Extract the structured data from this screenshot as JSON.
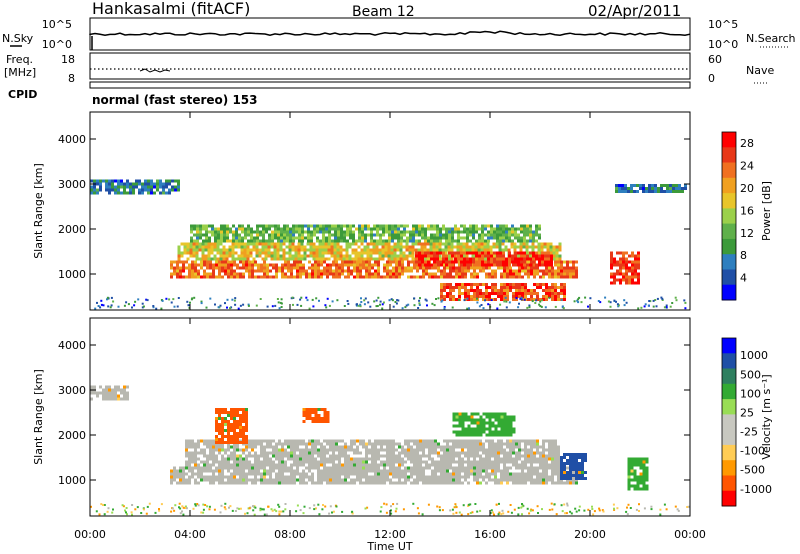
{
  "header": {
    "station": "Hankasalmi (fitACF)",
    "beam": "Beam 12",
    "date": "02/Apr/2011"
  },
  "noise_panel": {
    "left_label": "N.Sky",
    "right_label": "N.Search",
    "ticks_left": [
      "10^5",
      "10^0"
    ],
    "ticks_right": [
      "10^5",
      "10^0"
    ]
  },
  "freq_panel": {
    "left_label_1": "Freq.",
    "left_label_2": "[MHz]",
    "ticks_left": [
      "18",
      "8"
    ],
    "right_label": "Nave",
    "ticks_right": [
      "60",
      "0"
    ]
  },
  "cpid": {
    "label": "CPID",
    "text": "normal (fast stereo) 153"
  },
  "x_axis": {
    "label": "Time UT",
    "ticks": [
      "00:00",
      "04:00",
      "08:00",
      "12:00",
      "16:00",
      "20:00",
      "00:00"
    ]
  },
  "colors": {
    "power_scale": [
      "#0000ff",
      "#1f4fa6",
      "#2e7fbf",
      "#3c9a3a",
      "#5fb04a",
      "#9bd04a",
      "#e8c52a",
      "#f0a020",
      "#f07020",
      "#e83818",
      "#ff0000"
    ],
    "velocity_scale": [
      "#ff0000",
      "#ff5500",
      "#ff9900",
      "#ffcc55",
      "#c8c8c0",
      "#c8c8c0",
      "#99dd55",
      "#33aa33",
      "#2e7f5f",
      "#1f4fa6",
      "#0000ff"
    ],
    "ground_scatter": "#b8b8b0"
  },
  "chart_data": [
    {
      "type": "heatmap",
      "name": "power",
      "ylabel": "Slant Range [km]",
      "yticks": [
        "1000",
        "2000",
        "3000",
        "4000"
      ],
      "ylim": [
        200,
        4600
      ],
      "xlim": [
        "00:00",
        "24:00"
      ],
      "colorbar": {
        "label": "Power [dB]",
        "ticks": [
          "4",
          "8",
          "12",
          "16",
          "20",
          "24",
          "28"
        ],
        "range": [
          0,
          30
        ]
      },
      "bands": [
        {
          "t0": 0.0,
          "t1": 3.5,
          "r0": 2800,
          "r1": 3100,
          "value": 6
        },
        {
          "t0": 3.2,
          "t1": 19.5,
          "r0": 900,
          "r1": 1300,
          "value": 24
        },
        {
          "t0": 3.5,
          "t1": 18.8,
          "r0": 1300,
          "r1": 1700,
          "value": 18
        },
        {
          "t0": 4.0,
          "t1": 18.0,
          "r0": 1700,
          "r1": 2100,
          "value": 12
        },
        {
          "t0": 13.0,
          "t1": 18.5,
          "r0": 1200,
          "r1": 1500,
          "value": 28
        },
        {
          "t0": 14.0,
          "t1": 19.0,
          "r0": 450,
          "r1": 800,
          "value": 26
        },
        {
          "t0": 20.8,
          "t1": 22.0,
          "r0": 800,
          "r1": 1500,
          "value": 28
        },
        {
          "t0": 21.0,
          "t1": 23.8,
          "r0": 2800,
          "r1": 3000,
          "value": 6
        }
      ]
    },
    {
      "type": "heatmap",
      "name": "velocity",
      "ylabel": "Slant Range [km]",
      "yticks": [
        "1000",
        "2000",
        "3000",
        "4000"
      ],
      "ylim": [
        200,
        4600
      ],
      "xlim": [
        "00:00",
        "24:00"
      ],
      "colorbar": {
        "label": "Velocity [m s⁻¹]",
        "ticks": [
          "1000",
          "500",
          "100",
          "25",
          "-25",
          "-100",
          "-500",
          "-1000"
        ]
      },
      "bands": [
        {
          "t0": 0.0,
          "t1": 1.5,
          "r0": 2800,
          "r1": 3100,
          "value": 0
        },
        {
          "t0": 3.2,
          "t1": 19.5,
          "r0": 900,
          "r1": 1300,
          "value": 0
        },
        {
          "t0": 3.8,
          "t1": 18.8,
          "r0": 1300,
          "r1": 1900,
          "value": 0
        },
        {
          "t0": 5.0,
          "t1": 6.2,
          "r0": 1800,
          "r1": 2600,
          "value": -400
        },
        {
          "t0": 8.5,
          "t1": 9.5,
          "r0": 2300,
          "r1": 2600,
          "value": -600
        },
        {
          "t0": 14.5,
          "t1": 17.0,
          "r0": 2000,
          "r1": 2500,
          "value": 150
        },
        {
          "t0": 18.8,
          "t1": 19.8,
          "r0": 1000,
          "r1": 1600,
          "value": 600
        },
        {
          "t0": 21.5,
          "t1": 22.3,
          "r0": 800,
          "r1": 1500,
          "value": 150
        }
      ]
    }
  ]
}
